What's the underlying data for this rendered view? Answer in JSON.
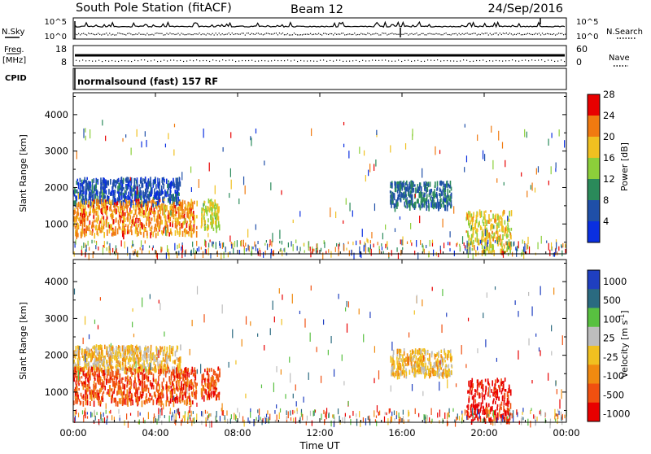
{
  "header": {
    "station": "South Pole Station (fitACF)",
    "beam": "Beam 12",
    "date": "24/Sep/2016"
  },
  "noise_panel": {
    "left_label": "N.Sky",
    "left_ticks": [
      "10^5",
      "10^0"
    ],
    "right_label": "N.Search",
    "right_ticks": [
      "10^5",
      "10^0"
    ]
  },
  "freq_panel": {
    "left_label_top": "Freq.",
    "left_label_bottom": "[MHz]",
    "left_ticks": [
      "18",
      "8"
    ],
    "right_label": "Nave",
    "right_ticks": [
      "60",
      "0"
    ]
  },
  "cpid_panel": {
    "label": "CPID",
    "program": "normalsound (fast) 157 RF"
  },
  "x_axis": {
    "label": "Time UT",
    "ticks": [
      "00:00",
      "04:00",
      "08:00",
      "12:00",
      "16:00",
      "20:00",
      "00:00"
    ]
  },
  "chart_data": [
    {
      "type": "heatmap",
      "panel": "power",
      "ylabel": "Slant Range [km]",
      "yticks": [
        "1000",
        "2000",
        "3000",
        "4000"
      ],
      "ylim": [
        180,
        4600
      ],
      "x_hours": [
        0,
        24
      ],
      "colorbar": {
        "label": "Power [dB]",
        "ticks": [
          "4",
          "8",
          "12",
          "16",
          "20",
          "24",
          "28"
        ],
        "range": [
          0,
          32
        ],
        "colors": [
          "#0a2fe0",
          "#1f4fa8",
          "#2a8a5a",
          "#8ccf3a",
          "#f0c020",
          "#f07a10",
          "#e80000"
        ]
      },
      "regions": [
        {
          "t": [
            0.0,
            5.2
          ],
          "range_km": [
            1600,
            2300
          ],
          "value": 6
        },
        {
          "t": [
            0.0,
            6.0
          ],
          "range_km": [
            750,
            1700
          ],
          "value": 24
        },
        {
          "t": [
            6.2,
            7.1
          ],
          "range_km": [
            900,
            1700
          ],
          "value": 18
        },
        {
          "t": [
            15.4,
            18.4
          ],
          "range_km": [
            1500,
            2200
          ],
          "value": 9
        },
        {
          "t": [
            19.1,
            21.3
          ],
          "range_km": [
            250,
            1400
          ],
          "value": 20
        }
      ]
    },
    {
      "type": "heatmap",
      "panel": "velocity",
      "ylabel": "Slant Range [km]",
      "yticks": [
        "1000",
        "2000",
        "3000",
        "4000"
      ],
      "ylim": [
        180,
        4600
      ],
      "x_hours": [
        0,
        24
      ],
      "colorbar": {
        "label": "Velocity [m s^-1]",
        "ticks": [
          "1000",
          "500",
          "100",
          "25",
          "-25",
          "-100",
          "-500",
          "-1000"
        ],
        "colors": [
          "#1f3fc0",
          "#2a6a80",
          "#58c040",
          "#bdbdbd",
          "#f0c020",
          "#f08a10",
          "#f05010",
          "#e80000"
        ]
      },
      "regions": [
        {
          "t": [
            0.0,
            5.2
          ],
          "range_km": [
            1600,
            2300
          ],
          "value": 0
        },
        {
          "t": [
            0.0,
            6.0
          ],
          "range_km": [
            750,
            1700
          ],
          "value": -300
        },
        {
          "t": [
            6.2,
            7.1
          ],
          "range_km": [
            900,
            1700
          ],
          "value": -300
        },
        {
          "t": [
            15.4,
            18.4
          ],
          "range_km": [
            1500,
            2200
          ],
          "value": 0
        },
        {
          "t": [
            19.1,
            21.3
          ],
          "range_km": [
            250,
            1400
          ],
          "value": -700
        }
      ]
    }
  ]
}
